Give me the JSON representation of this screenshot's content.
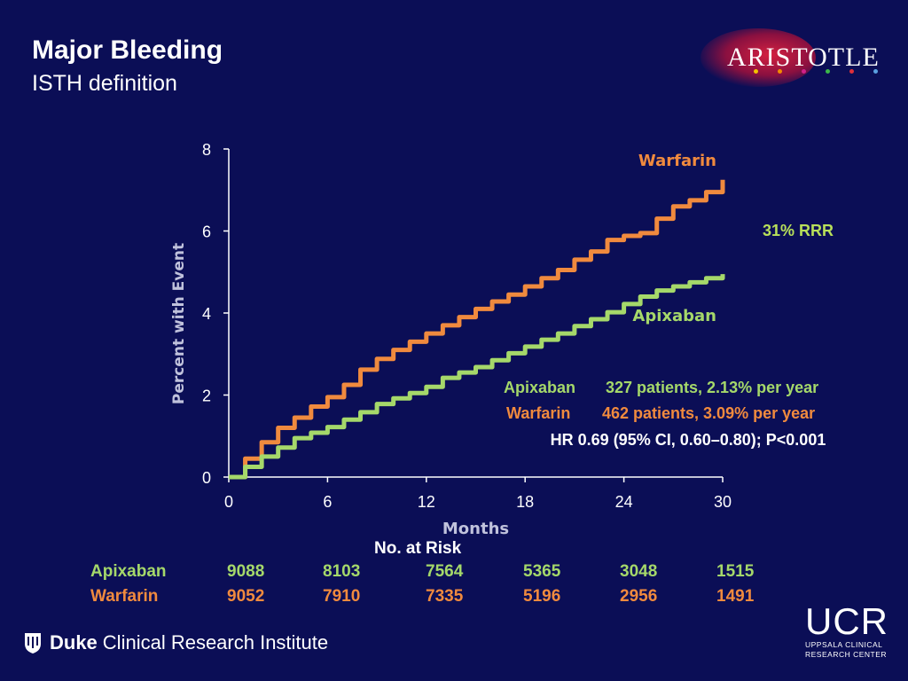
{
  "slide": {
    "title": "Major Bleeding",
    "subtitle": "ISTH definition"
  },
  "logo": {
    "text": "ARISTOTLE",
    "dot_colors": [
      "#f2c200",
      "#f28c00",
      "#d0208a",
      "#3cb84a",
      "#e0303a",
      "#5aa0e0"
    ]
  },
  "chart_data": {
    "type": "line",
    "ylabel": "Percent with Event",
    "xlabel": "Months",
    "xlim": [
      0,
      30
    ],
    "ylim": [
      0,
      8
    ],
    "xticks": [
      0,
      6,
      12,
      18,
      24,
      30
    ],
    "yticks": [
      0,
      2,
      4,
      6,
      8
    ],
    "grid": false,
    "series": [
      {
        "name": "Warfarin",
        "color": "#f08a3e",
        "x": [
          0,
          1,
          2,
          3,
          4,
          5,
          6,
          7,
          8,
          9,
          10,
          11,
          12,
          13,
          14,
          15,
          16,
          17,
          18,
          19,
          20,
          21,
          22,
          23,
          24,
          25,
          26,
          27,
          28,
          29,
          30
        ],
        "y": [
          0,
          0.45,
          0.85,
          1.2,
          1.45,
          1.72,
          1.95,
          2.25,
          2.62,
          2.88,
          3.1,
          3.3,
          3.5,
          3.7,
          3.9,
          4.1,
          4.28,
          4.45,
          4.65,
          4.85,
          5.05,
          5.3,
          5.5,
          5.78,
          5.88,
          5.95,
          6.3,
          6.6,
          6.75,
          6.95,
          7.25
        ]
      },
      {
        "name": "Apixaban",
        "color": "#a5d86a",
        "x": [
          0,
          1,
          2,
          3,
          4,
          5,
          6,
          7,
          8,
          9,
          10,
          11,
          12,
          13,
          14,
          15,
          16,
          17,
          18,
          19,
          20,
          21,
          22,
          23,
          24,
          25,
          26,
          27,
          28,
          29,
          30
        ],
        "y": [
          0,
          0.25,
          0.5,
          0.72,
          0.95,
          1.08,
          1.22,
          1.4,
          1.58,
          1.78,
          1.92,
          2.05,
          2.2,
          2.42,
          2.55,
          2.68,
          2.85,
          3.02,
          3.18,
          3.35,
          3.5,
          3.68,
          3.85,
          4.02,
          4.22,
          4.4,
          4.55,
          4.65,
          4.75,
          4.85,
          4.95
        ]
      }
    ],
    "annotations": {
      "warfarin_label": "Warfarin",
      "apixaban_label": "Apixaban",
      "rrr": "31% RRR",
      "apixaban_stat_name": "Apixaban",
      "apixaban_stat": "327 patients, 2.13% per year",
      "warfarin_stat_name": "Warfarin",
      "warfarin_stat": "462 patients, 3.09% per year",
      "hr": "HR 0.69 (95% CI, 0.60–0.80); P<0.001"
    }
  },
  "risk_table": {
    "title": "No. at Risk",
    "rows": [
      {
        "label": "Apixaban",
        "color": "#a5d86a",
        "values": [
          "9088",
          "8103",
          "7564",
          "5365",
          "3048",
          "1515"
        ]
      },
      {
        "label": "Warfarin",
        "color": "#f08a3e",
        "values": [
          "9052",
          "7910",
          "7335",
          "5196",
          "2956",
          "1491"
        ]
      }
    ]
  },
  "footer": {
    "duke_bold": "Duke",
    "duke_rest": "Clinical Research Institute",
    "ucr_big": "UCR",
    "ucr_line1": "UPPSALA CLINICAL",
    "ucr_line2": "RESEARCH CENTER"
  },
  "colors": {
    "background": "#0b0e56",
    "rrr": "#b8e05a",
    "axis": "#ffffff"
  }
}
